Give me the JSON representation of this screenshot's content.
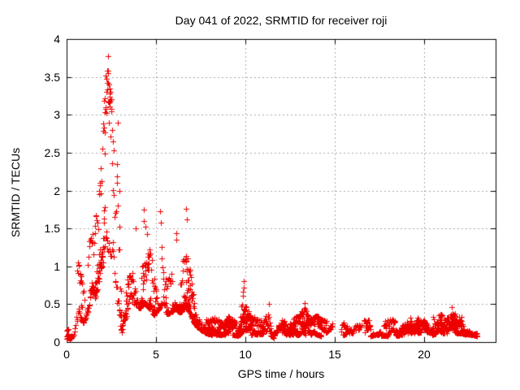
{
  "page": {
    "background": "#ffffff",
    "text_color": "#000000"
  },
  "chart_data": {
    "type": "scatter",
    "title": "Day 041 of 2022, SRMTID for receiver roji",
    "day_of_year": "041",
    "year": "2022",
    "receiver": "roji",
    "xlabel": "GPS time / hours",
    "ylabel": "SRMTID / TECUs",
    "xlim": [
      0,
      24
    ],
    "ylim": [
      0,
      4
    ],
    "xticks": [
      0,
      5,
      10,
      15,
      20
    ],
    "yticks": [
      0,
      0.5,
      1,
      1.5,
      2,
      2.5,
      3,
      3.5,
      4
    ],
    "grid": true,
    "grid_style": "dashed",
    "legend": "none",
    "series_name": "SRMTID",
    "marker": {
      "shape": "plus",
      "color": "#ee0000",
      "size": 7
    },
    "colors": {
      "axis": "#000000",
      "grid": "#a8a8a8"
    },
    "time_span_hours": [
      0.0,
      23.0
    ],
    "sample_interval_hours": 0.0333,
    "n_satellite_tracks": 6,
    "max_value": 3.78,
    "max_value_time": 2.3,
    "envelope_comment": "piecewise [time_h, low_TECU, high_TECU] envelope read from the plot",
    "envelope": [
      [
        0.0,
        0.03,
        0.15
      ],
      [
        0.2,
        0.04,
        0.22
      ],
      [
        0.35,
        0.06,
        0.4
      ],
      [
        0.5,
        0.15,
        0.85
      ],
      [
        0.65,
        0.25,
        1.0
      ],
      [
        0.8,
        0.3,
        1.05
      ],
      [
        0.95,
        0.25,
        0.95
      ],
      [
        1.1,
        0.35,
        1.1
      ],
      [
        1.25,
        0.45,
        1.3
      ],
      [
        1.4,
        0.5,
        1.4
      ],
      [
        1.55,
        0.55,
        1.5
      ],
      [
        1.7,
        0.65,
        1.8
      ],
      [
        1.85,
        0.85,
        2.1
      ],
      [
        2.0,
        0.95,
        2.6
      ],
      [
        2.1,
        1.05,
        3.2
      ],
      [
        2.2,
        1.15,
        3.55
      ],
      [
        2.3,
        1.2,
        3.6
      ],
      [
        2.4,
        1.2,
        3.5
      ],
      [
        2.5,
        1.1,
        3.2
      ],
      [
        2.6,
        0.95,
        2.8
      ],
      [
        2.7,
        0.8,
        2.5
      ],
      [
        2.8,
        0.55,
        2.7
      ],
      [
        2.9,
        0.35,
        1.8
      ],
      [
        3.0,
        0.15,
        0.9
      ],
      [
        3.1,
        0.12,
        0.6
      ],
      [
        3.25,
        0.25,
        0.9
      ],
      [
        3.4,
        0.35,
        1.0
      ],
      [
        3.55,
        0.45,
        1.15
      ],
      [
        3.7,
        0.5,
        1.3
      ],
      [
        3.85,
        0.5,
        1.45
      ],
      [
        4.0,
        0.45,
        1.3
      ],
      [
        4.15,
        0.45,
        1.25
      ],
      [
        4.3,
        0.5,
        1.7
      ],
      [
        4.45,
        0.5,
        1.5
      ],
      [
        4.6,
        0.45,
        1.3
      ],
      [
        4.75,
        0.4,
        1.1
      ],
      [
        4.9,
        0.35,
        0.9
      ],
      [
        5.05,
        0.4,
        1.15
      ],
      [
        5.2,
        0.45,
        1.7
      ],
      [
        5.35,
        0.4,
        1.0
      ],
      [
        5.5,
        0.35,
        0.85
      ],
      [
        5.65,
        0.35,
        0.8
      ],
      [
        5.8,
        0.4,
        0.9
      ],
      [
        5.95,
        0.4,
        1.05
      ],
      [
        6.1,
        0.45,
        1.4
      ],
      [
        6.25,
        0.4,
        1.1
      ],
      [
        6.4,
        0.4,
        0.95
      ],
      [
        6.55,
        0.45,
        1.15
      ],
      [
        6.7,
        0.45,
        1.75
      ],
      [
        6.85,
        0.4,
        1.3
      ],
      [
        7.0,
        0.3,
        0.9
      ],
      [
        7.15,
        0.25,
        0.6
      ],
      [
        7.3,
        0.2,
        0.45
      ],
      [
        7.5,
        0.15,
        0.38
      ],
      [
        7.75,
        0.12,
        0.33
      ],
      [
        8.0,
        0.1,
        0.3
      ],
      [
        8.25,
        0.1,
        0.32
      ],
      [
        8.5,
        0.1,
        0.3
      ],
      [
        8.75,
        0.1,
        0.33
      ],
      [
        9.0,
        0.1,
        0.35
      ],
      [
        9.25,
        0.1,
        0.3
      ],
      [
        9.5,
        0.08,
        0.28
      ],
      [
        9.7,
        0.1,
        0.35
      ],
      [
        9.85,
        0.15,
        0.75
      ],
      [
        10.0,
        0.15,
        0.6
      ],
      [
        10.15,
        0.12,
        0.45
      ],
      [
        10.3,
        0.1,
        0.4
      ],
      [
        10.5,
        0.1,
        0.35
      ],
      [
        10.7,
        0.08,
        0.3
      ],
      [
        10.9,
        0.08,
        0.28
      ],
      [
        11.1,
        0.08,
        0.32
      ],
      [
        11.3,
        0.1,
        0.48
      ],
      [
        11.45,
        0.08,
        0.35
      ],
      [
        11.6,
        0.05,
        0.25
      ],
      [
        11.8,
        0.06,
        0.25
      ],
      [
        12.0,
        0.08,
        0.28
      ],
      [
        12.25,
        0.08,
        0.3
      ],
      [
        12.5,
        0.1,
        0.3
      ],
      [
        12.75,
        0.1,
        0.32
      ],
      [
        13.0,
        0.1,
        0.35
      ],
      [
        13.25,
        0.12,
        0.5
      ],
      [
        13.4,
        0.1,
        0.4
      ],
      [
        13.6,
        0.08,
        0.3
      ],
      [
        13.8,
        0.1,
        0.32
      ],
      [
        14.0,
        0.1,
        0.35
      ],
      [
        14.25,
        0.08,
        0.3
      ],
      [
        14.5,
        0.08,
        0.28
      ],
      [
        14.75,
        0.1,
        0.3
      ],
      [
        15.0,
        0.08,
        0.28
      ],
      [
        15.25,
        0.08,
        0.3
      ],
      [
        15.5,
        0.1,
        0.32
      ],
      [
        15.7,
        0.1,
        0.35
      ],
      [
        15.9,
        0.08,
        0.3
      ],
      [
        16.1,
        0.08,
        0.3
      ],
      [
        16.3,
        0.1,
        0.32
      ],
      [
        16.5,
        0.1,
        0.3
      ],
      [
        16.75,
        0.08,
        0.28
      ],
      [
        17.0,
        0.08,
        0.3
      ],
      [
        17.25,
        0.1,
        0.33
      ],
      [
        17.5,
        0.1,
        0.35
      ],
      [
        17.75,
        0.08,
        0.3
      ],
      [
        18.0,
        0.08,
        0.3
      ],
      [
        18.25,
        0.1,
        0.3
      ],
      [
        18.5,
        0.08,
        0.3
      ],
      [
        18.75,
        0.1,
        0.32
      ],
      [
        19.0,
        0.1,
        0.33
      ],
      [
        19.25,
        0.1,
        0.35
      ],
      [
        19.5,
        0.1,
        0.33
      ],
      [
        19.75,
        0.12,
        0.38
      ],
      [
        20.0,
        0.12,
        0.42
      ],
      [
        20.25,
        0.12,
        0.4
      ],
      [
        20.5,
        0.1,
        0.38
      ],
      [
        20.75,
        0.12,
        0.4
      ],
      [
        21.0,
        0.12,
        0.4
      ],
      [
        21.25,
        0.12,
        0.42
      ],
      [
        21.5,
        0.14,
        0.46
      ],
      [
        21.7,
        0.12,
        0.43
      ],
      [
        21.9,
        0.12,
        0.4
      ],
      [
        22.1,
        0.12,
        0.42
      ],
      [
        22.3,
        0.1,
        0.38
      ],
      [
        22.5,
        0.1,
        0.35
      ],
      [
        22.7,
        0.1,
        0.32
      ],
      [
        22.9,
        0.08,
        0.3
      ],
      [
        23.0,
        0.08,
        0.25
      ]
    ],
    "peaks_comment": "notable individual points [time_h, TECU] read from the plot",
    "peaks": [
      [
        2.3,
        3.78
      ],
      [
        2.33,
        3.55
      ],
      [
        2.27,
        3.42
      ],
      [
        2.38,
        3.4
      ],
      [
        2.22,
        3.3
      ],
      [
        2.42,
        3.28
      ],
      [
        2.45,
        3.18
      ],
      [
        2.18,
        3.1
      ],
      [
        2.5,
        3.05
      ],
      [
        2.85,
        2.9
      ],
      [
        2.55,
        2.8
      ],
      [
        2.6,
        2.65
      ],
      [
        2.82,
        2.35
      ],
      [
        2.95,
        2.0
      ],
      [
        1.9,
        2.3
      ],
      [
        1.85,
        2.1
      ],
      [
        0.62,
        1.05
      ],
      [
        3.85,
        1.5
      ],
      [
        4.3,
        1.75
      ],
      [
        4.33,
        1.6
      ],
      [
        4.42,
        1.52
      ],
      [
        5.22,
        1.73
      ],
      [
        5.25,
        1.58
      ],
      [
        6.12,
        1.44
      ],
      [
        6.15,
        1.35
      ],
      [
        6.68,
        1.76
      ],
      [
        6.72,
        1.62
      ],
      [
        9.9,
        0.8
      ],
      [
        9.92,
        0.72
      ],
      [
        9.88,
        0.66
      ],
      [
        11.33,
        0.5
      ],
      [
        13.3,
        0.52
      ],
      [
        13.33,
        0.45
      ],
      [
        21.55,
        0.46
      ]
    ]
  }
}
